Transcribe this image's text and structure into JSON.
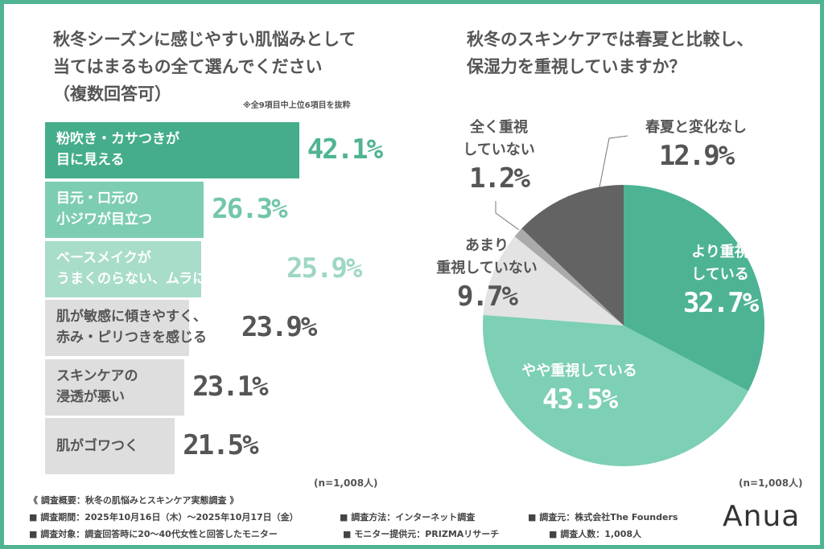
{
  "left_question": {
    "line1": "秋冬シーズンに感じやすい肌悩みとして",
    "line2": "当てはまるもの全て選んでください",
    "line3": "（複数回答可）",
    "note": "※全9項目中上位6項目を抜粋",
    "n": "(n=1,008人)"
  },
  "right_question": {
    "line1": "秋冬のスキンケアでは春夏と比較し、",
    "line2": "保湿力を重視していますか？",
    "n": "(n=1,008人)"
  },
  "chart_data": [
    {
      "type": "bar",
      "orientation": "horizontal",
      "unit": "%",
      "categories": [
        [
          "粉吹き・カサつきが",
          "目に見える"
        ],
        [
          "目元・口元の",
          "小ジワが目立つ"
        ],
        [
          "ベースメイクが",
          "うまくのらない、ムラになる"
        ],
        [
          "肌が敏感に傾きやすく、",
          "赤み・ピリつきを感じる"
        ],
        [
          "スキンケアの",
          "浸透が悪い"
        ],
        [
          "肌がゴワつく"
        ]
      ],
      "values": [
        42.1,
        26.3,
        25.9,
        23.9,
        23.1,
        21.5
      ],
      "labels": [
        "42.1%",
        "26.3%",
        "25.9%",
        "23.9%",
        "23.1%",
        "21.5%"
      ],
      "colors": [
        "#45ad8b",
        "#7dcdb2",
        "#a8ddc9",
        "#dedede",
        "#dedede",
        "#dedede"
      ],
      "label_colors": [
        "#4fb394",
        "#72c6aa",
        "#9fd7c2",
        "#555555",
        "#555555",
        "#555555"
      ]
    },
    {
      "type": "pie",
      "slices": [
        {
          "label": [
            "より重視",
            "している"
          ],
          "value": 32.7,
          "text": "32.7%",
          "color": "#4db394"
        },
        {
          "label": [
            "やや重視している"
          ],
          "value": 43.5,
          "text": "43.5%",
          "color": "#7dcfb5"
        },
        {
          "label": [
            "あまり",
            "重視していない"
          ],
          "value": 9.7,
          "text": "9.7%",
          "color": "#e3e3e3"
        },
        {
          "label": [
            "全く重視",
            "していない"
          ],
          "value": 1.2,
          "text": "1.2%",
          "color": "#aaaaaa"
        },
        {
          "label": [
            "春夏と変化なし"
          ],
          "value": 12.9,
          "text": "12.9%",
          "color": "#636363"
        }
      ]
    }
  ],
  "footer": {
    "heading": "《 調査概要：秋冬の肌悩みとスキンケア実態調査 》",
    "items": [
      "■ 調査期間：2025年10月16日（木）〜2025年10月17日（金）",
      "■ 調査方法：インターネット調査",
      "■ 調査元：株式会社The Founders",
      "■ 調査対象：調査回答時に20〜40代女性と回答したモニター",
      "■ モニター提供元：PRIZMAリサーチ",
      "■ 調査人数：1,008人"
    ],
    "logo": "Anua"
  }
}
